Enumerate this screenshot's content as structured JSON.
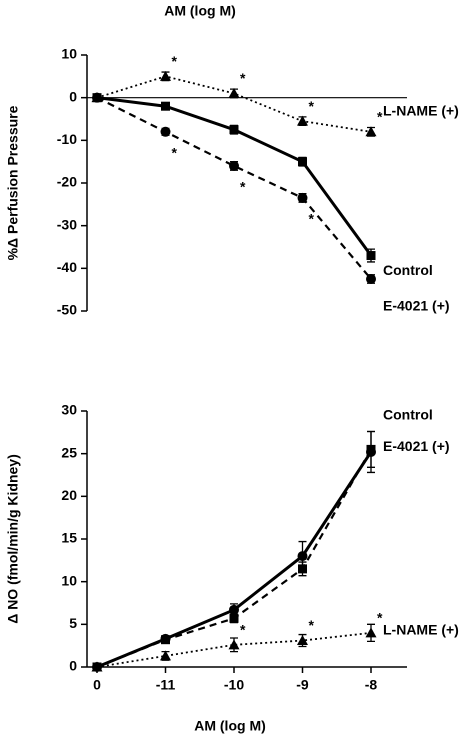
{
  "chart_data": [
    {
      "type": "line",
      "x_label": "AM (log M)",
      "y_label": "%Δ Perfusion Pressure",
      "categories": [
        null,
        null,
        null,
        null,
        null
      ],
      "ylim": [
        -50,
        10
      ],
      "yticks": [
        10,
        0,
        -10,
        -20,
        -30,
        -40,
        -50
      ],
      "zero_line": true,
      "series": [
        {
          "name": "Control",
          "color": "#000000",
          "linestyle": "solid",
          "marker": "square",
          "values": [
            0,
            -2,
            -7.5,
            -15,
            -37
          ],
          "errors": [
            0,
            0.5,
            1,
            1,
            1.5
          ],
          "significance": [
            null,
            null,
            null,
            null,
            null
          ]
        },
        {
          "name": "E-4021 (+)",
          "color": "#000000",
          "linestyle": "dashed",
          "marker": "circle",
          "values": [
            0,
            -8,
            -16,
            -23.5,
            -42.5
          ],
          "errors": [
            0,
            0.8,
            1,
            1,
            1
          ],
          "significance": [
            null,
            "*",
            "*",
            "*",
            null
          ]
        },
        {
          "name": "L-NAME (+)",
          "color": "#000000",
          "linestyle": "dotted",
          "marker": "triangle",
          "values": [
            0,
            5,
            1,
            -5.5,
            -8
          ],
          "errors": [
            0,
            1,
            1,
            1,
            1
          ],
          "significance": [
            null,
            "*",
            "*",
            "*",
            "*"
          ]
        }
      ]
    },
    {
      "type": "line",
      "x_label": "AM (log M)",
      "y_label": "Δ NO (fmol/min/g Kidney)",
      "categories": [
        "0",
        "-11",
        "-10",
        "-9",
        "-8"
      ],
      "ylim": [
        0,
        30
      ],
      "yticks": [
        0,
        5,
        10,
        15,
        20,
        25,
        30
      ],
      "zero_line": false,
      "series": [
        {
          "name": "Control",
          "color": "#000000",
          "linestyle": "solid",
          "marker": "circle",
          "values": [
            0,
            3.3,
            6.7,
            13,
            25.2
          ],
          "errors": [
            0,
            0.3,
            0.7,
            1.7,
            2.4
          ],
          "significance": [
            null,
            null,
            null,
            null,
            null
          ]
        },
        {
          "name": "E-4021 (+)",
          "color": "#000000",
          "linestyle": "dashed",
          "marker": "square",
          "values": [
            0,
            3.2,
            5.7,
            11.5,
            25.5
          ],
          "errors": [
            0,
            0.3,
            0.5,
            0.8,
            2.1
          ],
          "significance": [
            null,
            null,
            null,
            null,
            null
          ]
        },
        {
          "name": "L-NAME (+)",
          "color": "#000000",
          "linestyle": "dotted",
          "marker": "triangle",
          "values": [
            0,
            1.3,
            2.6,
            3.1,
            4
          ],
          "errors": [
            0,
            0.5,
            0.8,
            0.7,
            1
          ],
          "significance": [
            null,
            null,
            "*",
            "*",
            "*"
          ]
        }
      ]
    }
  ]
}
